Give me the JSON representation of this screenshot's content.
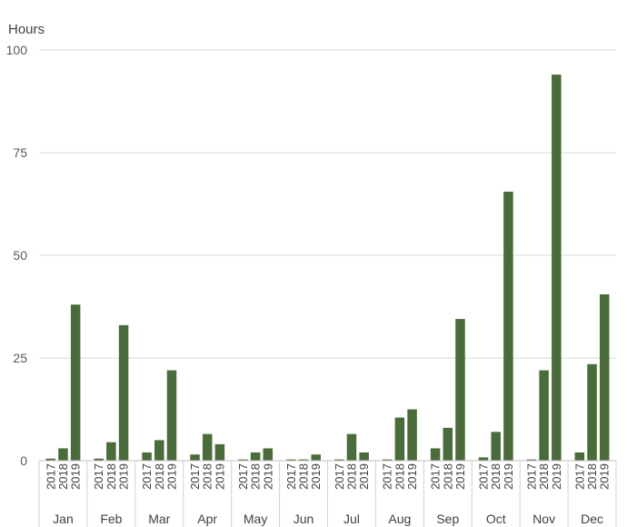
{
  "chart_data": {
    "type": "bar",
    "ylabel": "Hours",
    "ylim": [
      0,
      100
    ],
    "yticks": [
      0,
      25,
      50,
      75,
      100
    ],
    "grid": true,
    "bar_color": "#4a6b3a",
    "grid_color": "#d9d9d9",
    "years": [
      "2017",
      "2018",
      "2019"
    ],
    "categories": [
      "Jan",
      "Feb",
      "Mar",
      "Apr",
      "May",
      "Jun",
      "Jul",
      "Aug",
      "Sep",
      "Oct",
      "Nov",
      "Dec"
    ],
    "values": [
      [
        0.5,
        3,
        38
      ],
      [
        0.5,
        4.5,
        33
      ],
      [
        2,
        5,
        22
      ],
      [
        1.5,
        6.5,
        4
      ],
      [
        0.3,
        2,
        3
      ],
      [
        0.3,
        0.3,
        1.5
      ],
      [
        0.3,
        6.5,
        2
      ],
      [
        0.3,
        10.5,
        12.5
      ],
      [
        3,
        8,
        34.5
      ],
      [
        0.8,
        7,
        65.5
      ],
      [
        0.3,
        22,
        94
      ],
      [
        2,
        23.5,
        40.5
      ]
    ]
  }
}
